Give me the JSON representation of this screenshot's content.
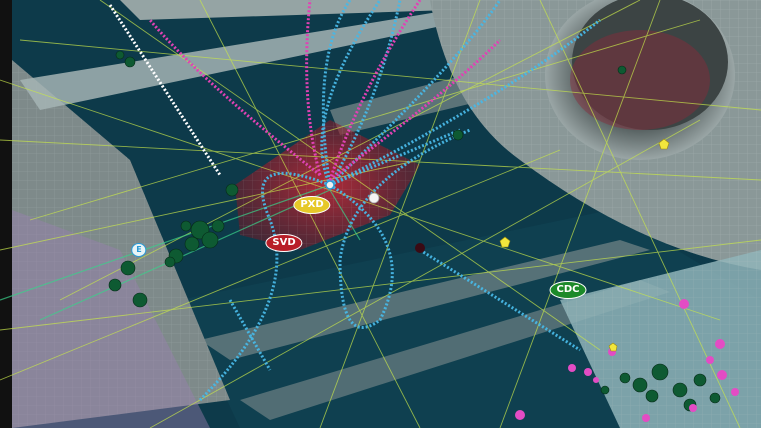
{
  "detector_labels": {
    "pxd": "PXD",
    "svd": "SVD",
    "cdc": "CDC",
    "small_label": "E"
  },
  "colors": {
    "background_teal": "#0d3a4a",
    "wall_grey": "#8a9696",
    "cyan_track": "#48b8e6",
    "magenta_track": "#e042b4",
    "yellow_green_line": "#c8e64a",
    "red_region": "#b81e2e",
    "dark_green_cluster": "#0e5a32",
    "cdc_badge": "#1c8a2a",
    "pxd_badge": "#e6c828",
    "svd_badge": "#b81e28"
  }
}
